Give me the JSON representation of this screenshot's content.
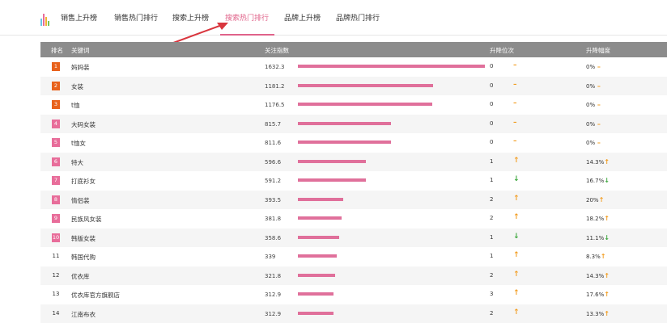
{
  "tabs": [
    {
      "label": "销售上升榜",
      "active": false
    },
    {
      "label": "销售热门排行",
      "active": false
    },
    {
      "label": "搜索上升榜",
      "active": false
    },
    {
      "label": "搜索热门排行",
      "active": true
    },
    {
      "label": "品牌上升榜",
      "active": false
    },
    {
      "label": "品牌热门排行",
      "active": false
    }
  ],
  "table": {
    "headers": {
      "rank": "排名",
      "keyword": "关键词",
      "index": "关注指数",
      "change": "升降位次",
      "change_pct": "升降幅度"
    },
    "max_index": 1632.3,
    "rows": [
      {
        "rank": "1",
        "keyword": "妈妈装",
        "index": "1632.3",
        "value": 1632.3,
        "change": "0",
        "trend": "flat",
        "pct": "0%"
      },
      {
        "rank": "2",
        "keyword": "女装",
        "index": "1181.2",
        "value": 1181.2,
        "change": "0",
        "trend": "flat",
        "pct": "0%"
      },
      {
        "rank": "3",
        "keyword": "t恤",
        "index": "1176.5",
        "value": 1176.5,
        "change": "0",
        "trend": "flat",
        "pct": "0%"
      },
      {
        "rank": "4",
        "keyword": "大码女装",
        "index": "815.7",
        "value": 815.7,
        "change": "0",
        "trend": "flat",
        "pct": "0%"
      },
      {
        "rank": "5",
        "keyword": "t恤女",
        "index": "811.6",
        "value": 811.6,
        "change": "0",
        "trend": "flat",
        "pct": "0%"
      },
      {
        "rank": "6",
        "keyword": "特大",
        "index": "596.6",
        "value": 596.6,
        "change": "1",
        "trend": "up",
        "pct": "14.3%"
      },
      {
        "rank": "7",
        "keyword": "打底衫女",
        "index": "591.2",
        "value": 591.2,
        "change": "1",
        "trend": "down",
        "pct": "16.7%"
      },
      {
        "rank": "8",
        "keyword": "情侣装",
        "index": "393.5",
        "value": 393.5,
        "change": "2",
        "trend": "up",
        "pct": "20%"
      },
      {
        "rank": "9",
        "keyword": "民族风女装",
        "index": "381.8",
        "value": 381.8,
        "change": "2",
        "trend": "up",
        "pct": "18.2%"
      },
      {
        "rank": "10",
        "keyword": "韩版女装",
        "index": "358.6",
        "value": 358.6,
        "change": "1",
        "trend": "down",
        "pct": "11.1%"
      },
      {
        "rank": "11",
        "keyword": "韩国代购",
        "index": "339",
        "value": 339,
        "change": "1",
        "trend": "up",
        "pct": "8.3%"
      },
      {
        "rank": "12",
        "keyword": "优衣库",
        "index": "321.8",
        "value": 321.8,
        "change": "2",
        "trend": "up",
        "pct": "14.3%"
      },
      {
        "rank": "13",
        "keyword": "优衣库官方旗舰店",
        "index": "312.9",
        "value": 312.9,
        "change": "3",
        "trend": "up",
        "pct": "17.6%"
      },
      {
        "rank": "14",
        "keyword": "江南布衣",
        "index": "312.9",
        "value": 312.9,
        "change": "2",
        "trend": "up",
        "pct": "13.3%"
      }
    ]
  },
  "colors": {
    "accent": "#e0638a",
    "bar": "#e0709b",
    "rank_orange": "#e8621c",
    "rank_pink": "#e86d9a",
    "header_bg": "#8c8c8c",
    "up": "#f29c1f",
    "down": "#3aa63a",
    "arrow_annotation": "#d9363e"
  },
  "icons": {
    "logo": "bar-chart-logo-icon",
    "up": "↑",
    "down": "↓",
    "flat": "–"
  }
}
